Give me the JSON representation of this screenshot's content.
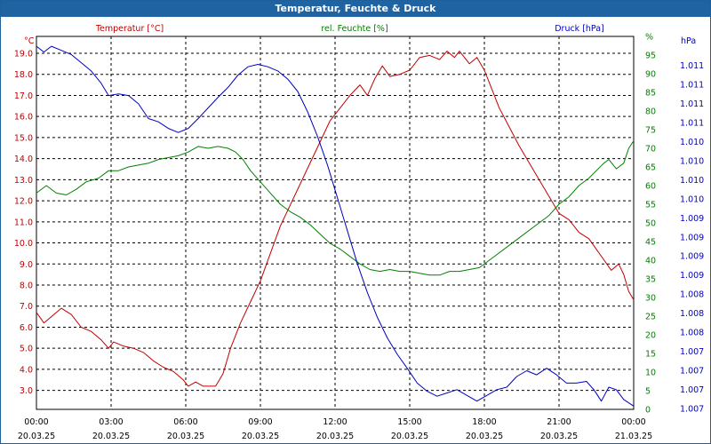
{
  "window": {
    "title": "Temperatur, Feuchte & Druck"
  },
  "chart_data": {
    "type": "line",
    "title": "Temperatur, Feuchte & Druck",
    "x_ticks": [
      {
        "time": "00:00",
        "date": "20.03.25"
      },
      {
        "time": "03:00",
        "date": "20.03.25"
      },
      {
        "time": "06:00",
        "date": "20.03.25"
      },
      {
        "time": "09:00",
        "date": "20.03.25"
      },
      {
        "time": "12:00",
        "date": "20.03.25"
      },
      {
        "time": "15:00",
        "date": "20.03.25"
      },
      {
        "time": "18:00",
        "date": "20.03.25"
      },
      {
        "time": "21:00",
        "date": "20.03.25"
      },
      {
        "time": "00:00",
        "date": "21.03.25"
      }
    ],
    "xlim_hours": [
      0,
      24
    ],
    "grid": true,
    "axes": {
      "temperature": {
        "label": "Temperatur [°C]",
        "unit": "°C",
        "side": "left",
        "color": "#c00000",
        "ylim": [
          2.1,
          19.8
        ],
        "ticks": [
          "3.0",
          "4.0",
          "5.0",
          "6.0",
          "7.0",
          "8.0",
          "9.0",
          "10.0",
          "11.0",
          "12.0",
          "13.0",
          "14.0",
          "15.0",
          "16.0",
          "17.0",
          "18.0",
          "19.0"
        ]
      },
      "humidity": {
        "label": "rel. Feuchte [%]",
        "unit": "%",
        "side": "right",
        "color": "#008000",
        "ylim": [
          0,
          100
        ],
        "ticks": [
          "0",
          "5",
          "10",
          "15",
          "20",
          "25",
          "30",
          "35",
          "40",
          "45",
          "50",
          "55",
          "60",
          "65",
          "70",
          "75",
          "80",
          "85",
          "90",
          "95",
          "%"
        ]
      },
      "pressure": {
        "label": "Druck [hPa]",
        "unit": "hPa",
        "side": "right",
        "color": "#0000c0",
        "ylim": [
          1006.88,
          1011.42
        ],
        "ticks": [
          "1.007",
          "1.007",
          "1.007",
          "1.007",
          "1.008",
          "1.008",
          "1.008",
          "1.009",
          "1.009",
          "1.009",
          "1.009",
          "1.010",
          "1.010",
          "1.010",
          "1.010",
          "1.011",
          "1.011",
          "1.011",
          "1.011"
        ]
      }
    },
    "series": [
      {
        "name": "Temperatur [°C]",
        "axis": "temperature",
        "color": "#c00000",
        "points": [
          [
            0,
            6.7
          ],
          [
            0.3,
            6.2
          ],
          [
            0.6,
            6.5
          ],
          [
            1.0,
            6.9
          ],
          [
            1.4,
            6.6
          ],
          [
            1.8,
            6.0
          ],
          [
            2.2,
            5.8
          ],
          [
            2.6,
            5.4
          ],
          [
            2.9,
            5.0
          ],
          [
            3.1,
            5.3
          ],
          [
            3.5,
            5.1
          ],
          [
            3.9,
            5.0
          ],
          [
            4.3,
            4.8
          ],
          [
            4.7,
            4.4
          ],
          [
            5.1,
            4.1
          ],
          [
            5.5,
            3.9
          ],
          [
            5.9,
            3.5
          ],
          [
            6.1,
            3.2
          ],
          [
            6.4,
            3.4
          ],
          [
            6.7,
            3.2
          ],
          [
            7.2,
            3.2
          ],
          [
            7.5,
            3.8
          ],
          [
            7.8,
            5.0
          ],
          [
            8.2,
            6.2
          ],
          [
            8.6,
            7.2
          ],
          [
            9.0,
            8.2
          ],
          [
            9.4,
            9.5
          ],
          [
            9.8,
            10.8
          ],
          [
            10.2,
            11.8
          ],
          [
            10.6,
            12.8
          ],
          [
            11.0,
            13.8
          ],
          [
            11.4,
            14.8
          ],
          [
            11.8,
            15.8
          ],
          [
            12.2,
            16.4
          ],
          [
            12.6,
            17.0
          ],
          [
            13.0,
            17.5
          ],
          [
            13.3,
            17.0
          ],
          [
            13.6,
            17.8
          ],
          [
            13.9,
            18.4
          ],
          [
            14.2,
            17.9
          ],
          [
            14.6,
            18.0
          ],
          [
            15.0,
            18.2
          ],
          [
            15.4,
            18.8
          ],
          [
            15.8,
            18.9
          ],
          [
            16.2,
            18.7
          ],
          [
            16.5,
            19.1
          ],
          [
            16.8,
            18.8
          ],
          [
            17.0,
            19.1
          ],
          [
            17.2,
            18.8
          ],
          [
            17.4,
            18.5
          ],
          [
            17.7,
            18.8
          ],
          [
            18.0,
            18.2
          ],
          [
            18.3,
            17.3
          ],
          [
            18.6,
            16.4
          ],
          [
            19.0,
            15.5
          ],
          [
            19.4,
            14.6
          ],
          [
            19.8,
            13.8
          ],
          [
            20.2,
            13.0
          ],
          [
            20.6,
            12.2
          ],
          [
            21.0,
            11.4
          ],
          [
            21.4,
            11.1
          ],
          [
            21.8,
            10.5
          ],
          [
            22.2,
            10.2
          ],
          [
            22.5,
            9.7
          ],
          [
            22.8,
            9.2
          ],
          [
            23.1,
            8.7
          ],
          [
            23.4,
            9.0
          ],
          [
            23.6,
            8.5
          ],
          [
            23.8,
            7.7
          ],
          [
            24.0,
            7.3
          ]
        ]
      },
      {
        "name": "rel. Feuchte [%]",
        "axis": "humidity",
        "color": "#008000",
        "points": [
          [
            0,
            58
          ],
          [
            0.4,
            60
          ],
          [
            0.8,
            58
          ],
          [
            1.2,
            57.5
          ],
          [
            1.6,
            59
          ],
          [
            2.0,
            61
          ],
          [
            2.5,
            62
          ],
          [
            2.9,
            64
          ],
          [
            3.3,
            64
          ],
          [
            3.7,
            65
          ],
          [
            4.1,
            65.5
          ],
          [
            4.5,
            66
          ],
          [
            4.9,
            67
          ],
          [
            5.3,
            67.5
          ],
          [
            5.7,
            68
          ],
          [
            6.1,
            69
          ],
          [
            6.5,
            70.5
          ],
          [
            6.9,
            70
          ],
          [
            7.3,
            70.5
          ],
          [
            7.7,
            70
          ],
          [
            8.0,
            69
          ],
          [
            8.3,
            67
          ],
          [
            8.6,
            64
          ],
          [
            9.0,
            61
          ],
          [
            9.4,
            58
          ],
          [
            9.8,
            55
          ],
          [
            10.2,
            53
          ],
          [
            10.6,
            51.5
          ],
          [
            11.0,
            49.5
          ],
          [
            11.4,
            47
          ],
          [
            11.8,
            44.5
          ],
          [
            12.2,
            43
          ],
          [
            12.6,
            41
          ],
          [
            13.0,
            39
          ],
          [
            13.4,
            37.5
          ],
          [
            13.8,
            37
          ],
          [
            14.2,
            37.5
          ],
          [
            14.6,
            37
          ],
          [
            15.0,
            37
          ],
          [
            15.4,
            36.5
          ],
          [
            15.8,
            36
          ],
          [
            16.2,
            36
          ],
          [
            16.6,
            37
          ],
          [
            17.0,
            37
          ],
          [
            17.4,
            37.5
          ],
          [
            17.8,
            38
          ],
          [
            18.2,
            40
          ],
          [
            18.6,
            42
          ],
          [
            19.0,
            44
          ],
          [
            19.4,
            46
          ],
          [
            19.8,
            48
          ],
          [
            20.2,
            50
          ],
          [
            20.6,
            52
          ],
          [
            21.0,
            55
          ],
          [
            21.4,
            57
          ],
          [
            21.8,
            60
          ],
          [
            22.2,
            62
          ],
          [
            22.5,
            64
          ],
          [
            22.8,
            66
          ],
          [
            23.0,
            67
          ],
          [
            23.3,
            64.5
          ],
          [
            23.6,
            66
          ],
          [
            23.8,
            70
          ],
          [
            24.0,
            72
          ]
        ]
      },
      {
        "name": "Druck [hPa]",
        "axis": "pressure",
        "color": "#0000c0",
        "points": [
          [
            0,
            1011.3
          ],
          [
            0.3,
            1011.23
          ],
          [
            0.6,
            1011.3
          ],
          [
            1.0,
            1011.25
          ],
          [
            1.4,
            1011.2
          ],
          [
            1.8,
            1011.1
          ],
          [
            2.2,
            1011.0
          ],
          [
            2.6,
            1010.85
          ],
          [
            2.9,
            1010.7
          ],
          [
            3.3,
            1010.72
          ],
          [
            3.7,
            1010.7
          ],
          [
            4.1,
            1010.6
          ],
          [
            4.5,
            1010.42
          ],
          [
            4.9,
            1010.38
          ],
          [
            5.3,
            1010.3
          ],
          [
            5.7,
            1010.25
          ],
          [
            6.1,
            1010.3
          ],
          [
            6.5,
            1010.42
          ],
          [
            6.9,
            1010.55
          ],
          [
            7.3,
            1010.68
          ],
          [
            7.7,
            1010.8
          ],
          [
            8.1,
            1010.95
          ],
          [
            8.5,
            1011.05
          ],
          [
            8.9,
            1011.08
          ],
          [
            9.3,
            1011.05
          ],
          [
            9.7,
            1011.0
          ],
          [
            10.1,
            1010.9
          ],
          [
            10.5,
            1010.75
          ],
          [
            10.9,
            1010.5
          ],
          [
            11.3,
            1010.2
          ],
          [
            11.7,
            1009.85
          ],
          [
            12.1,
            1009.45
          ],
          [
            12.5,
            1009.05
          ],
          [
            12.9,
            1008.65
          ],
          [
            13.3,
            1008.3
          ],
          [
            13.7,
            1008.0
          ],
          [
            14.1,
            1007.75
          ],
          [
            14.5,
            1007.55
          ],
          [
            14.9,
            1007.38
          ],
          [
            15.3,
            1007.2
          ],
          [
            15.7,
            1007.1
          ],
          [
            16.1,
            1007.04
          ],
          [
            16.5,
            1007.08
          ],
          [
            16.9,
            1007.12
          ],
          [
            17.3,
            1007.05
          ],
          [
            17.7,
            1006.98
          ],
          [
            18.1,
            1007.05
          ],
          [
            18.5,
            1007.12
          ],
          [
            18.9,
            1007.15
          ],
          [
            19.3,
            1007.28
          ],
          [
            19.7,
            1007.35
          ],
          [
            20.1,
            1007.3
          ],
          [
            20.5,
            1007.38
          ],
          [
            20.9,
            1007.3
          ],
          [
            21.3,
            1007.2
          ],
          [
            21.7,
            1007.2
          ],
          [
            22.1,
            1007.22
          ],
          [
            22.4,
            1007.12
          ],
          [
            22.7,
            1006.98
          ],
          [
            23.0,
            1007.15
          ],
          [
            23.3,
            1007.12
          ],
          [
            23.6,
            1007.0
          ],
          [
            24.0,
            1006.92
          ]
        ]
      }
    ]
  }
}
